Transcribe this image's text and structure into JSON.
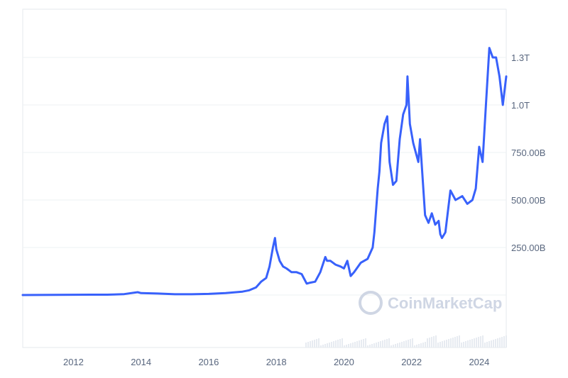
{
  "chart_data": {
    "type": "line",
    "title": "",
    "xlabel": "",
    "ylabel": "",
    "x_ticks": [
      "2012",
      "2014",
      "2016",
      "2018",
      "2020",
      "2022",
      "2024"
    ],
    "y_ticks": [
      {
        "value": 250,
        "label": "250.00B"
      },
      {
        "value": 500,
        "label": "500.00B"
      },
      {
        "value": 750,
        "label": "750.00B"
      },
      {
        "value": 1000,
        "label": "1.0T"
      },
      {
        "value": 1250,
        "label": "1.3T"
      }
    ],
    "y_units": "billions USD",
    "xlim": [
      2010.5,
      2024.8
    ],
    "ylim": [
      0,
      1500
    ],
    "grid": true,
    "legend": "none",
    "watermark": "CoinMarketCap",
    "line_color": "#3861fb",
    "series": [
      {
        "x": [
          2010.5,
          2011.5,
          2012.5,
          2013.0,
          2013.2,
          2013.5,
          2013.9,
          2014.0,
          2014.5,
          2015.0,
          2015.5,
          2016.0,
          2016.5,
          2017.0,
          2017.2,
          2017.4,
          2017.55,
          2017.7,
          2017.8,
          2017.9,
          2017.96,
          2018.0,
          2018.1,
          2018.2,
          2018.3,
          2018.45,
          2018.6,
          2018.75,
          2018.9,
          2019.0,
          2019.15,
          2019.3,
          2019.45,
          2019.5,
          2019.6,
          2019.75,
          2019.9,
          2020.0,
          2020.1,
          2020.2,
          2020.3,
          2020.5,
          2020.7,
          2020.85,
          2020.9,
          2021.0,
          2021.05,
          2021.1,
          2021.2,
          2021.28,
          2021.35,
          2021.45,
          2021.55,
          2021.65,
          2021.75,
          2021.85,
          2021.88,
          2021.95,
          2022.05,
          2022.2,
          2022.25,
          2022.4,
          2022.5,
          2022.6,
          2022.7,
          2022.8,
          2022.85,
          2022.9,
          2023.0,
          2023.15,
          2023.3,
          2023.5,
          2023.65,
          2023.8,
          2023.9,
          2024.0,
          2024.1,
          2024.2,
          2024.3,
          2024.4,
          2024.5,
          2024.6,
          2024.7,
          2024.8
        ],
        "y": [
          0,
          1,
          2,
          2,
          3,
          5,
          15,
          10,
          8,
          4,
          4,
          6,
          10,
          18,
          25,
          40,
          70,
          90,
          150,
          250,
          300,
          240,
          180,
          150,
          140,
          120,
          120,
          110,
          60,
          65,
          70,
          120,
          200,
          180,
          180,
          160,
          150,
          140,
          180,
          100,
          120,
          170,
          190,
          250,
          330,
          560,
          650,
          800,
          900,
          940,
          700,
          580,
          600,
          820,
          950,
          1000,
          1150,
          900,
          800,
          700,
          820,
          420,
          380,
          430,
          370,
          390,
          320,
          300,
          330,
          550,
          500,
          520,
          480,
          500,
          560,
          780,
          700,
          1000,
          1300,
          1250,
          1250,
          1150,
          1000,
          1150
        ]
      }
    ]
  }
}
